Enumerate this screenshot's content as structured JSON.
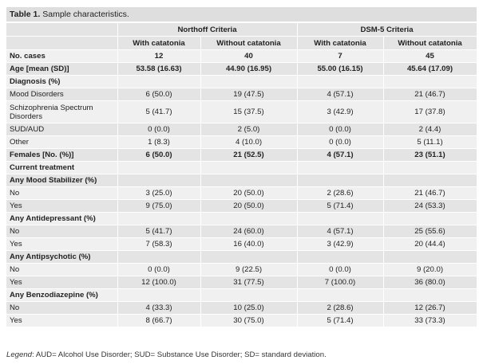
{
  "caption": {
    "label": "Table 1.",
    "text": " Sample characteristics."
  },
  "headers": {
    "group1": "Northoff Criteria",
    "group2": "DSM-5 Criteria",
    "cols": [
      "With catatonia",
      "Without catatonia",
      "With catatonia",
      "Without catatonia"
    ]
  },
  "rows": [
    {
      "label": "No. cases",
      "values": [
        "12",
        "40",
        "7",
        "45"
      ]
    },
    {
      "label": "Age [mean (SD)]",
      "values": [
        "53.58 (16.63)",
        "44.90 (16.95)",
        "55.00 (16.15)",
        "45.64 (17.09)"
      ]
    },
    {
      "label": "Diagnosis (%)",
      "values": [
        "",
        "",
        "",
        ""
      ]
    },
    {
      "label": "Mood Disorders",
      "values": [
        "6 (50.0)",
        "19 (47.5)",
        "4 (57.1)",
        "21 (46.7)"
      ]
    },
    {
      "label": "Schizophrenia Spectrum Disorders",
      "values": [
        "5 (41.7)",
        "15 (37.5)",
        "3 (42.9)",
        "17 (37.8)"
      ]
    },
    {
      "label": "SUD/AUD",
      "values": [
        "0 (0.0)",
        "2 (5.0)",
        "0 (0.0)",
        "2 (4.4)"
      ]
    },
    {
      "label": "Other",
      "values": [
        "1 (8.3)",
        "4 (10.0)",
        "0 (0.0)",
        "5 (11.1)"
      ]
    },
    {
      "label": "Females [No. (%)]",
      "values": [
        "6 (50.0)",
        "21 (52.5)",
        "4 (57.1)",
        "23 (51.1)"
      ]
    },
    {
      "label": "Current treatment",
      "values": [
        "",
        "",
        "",
        ""
      ]
    },
    {
      "label": "Any Mood Stabilizer (%)",
      "values": [
        "",
        "",
        "",
        ""
      ]
    },
    {
      "label": "No",
      "values": [
        "3 (25.0)",
        "20 (50.0)",
        "2 (28.6)",
        "21 (46.7)"
      ]
    },
    {
      "label": "Yes",
      "values": [
        "9 (75.0)",
        "20 (50.0)",
        "5 (71.4)",
        "24 (53.3)"
      ]
    },
    {
      "label": "Any Antidepressant (%)",
      "values": [
        "",
        "",
        "",
        ""
      ]
    },
    {
      "label": "No",
      "values": [
        "5 (41.7)",
        "24 (60.0)",
        "4 (57.1)",
        "25 (55.6)"
      ]
    },
    {
      "label": "Yes",
      "values": [
        "7 (58.3)",
        "16 (40.0)",
        "3 (42.9)",
        "20 (44.4)"
      ]
    },
    {
      "label": "Any Antipsychotic (%)",
      "values": [
        "",
        "",
        "",
        ""
      ]
    },
    {
      "label": "No",
      "values": [
        "0 (0.0)",
        "9 (22.5)",
        "0 (0.0)",
        "9 (20.0)"
      ]
    },
    {
      "label": "Yes",
      "values": [
        "12 (100.0)",
        "31 (77.5)",
        "7 (100.0)",
        "36 (80.0)"
      ]
    },
    {
      "label": "Any Benzodiazepine (%)",
      "values": [
        "",
        "",
        "",
        ""
      ]
    },
    {
      "label": "No",
      "values": [
        "4 (33.3)",
        "10 (25.0)",
        "2 (28.6)",
        "12 (26.7)"
      ]
    },
    {
      "label": "Yes",
      "values": [
        "8 (66.7)",
        "30 (75.0)",
        "5 (71.4)",
        "33 (73.3)"
      ]
    }
  ],
  "legend": {
    "label": "Legend",
    "text": ": AUD= Alcohol Use Disorder; SUD= Substance Use Disorder; SD= standard deviation."
  }
}
